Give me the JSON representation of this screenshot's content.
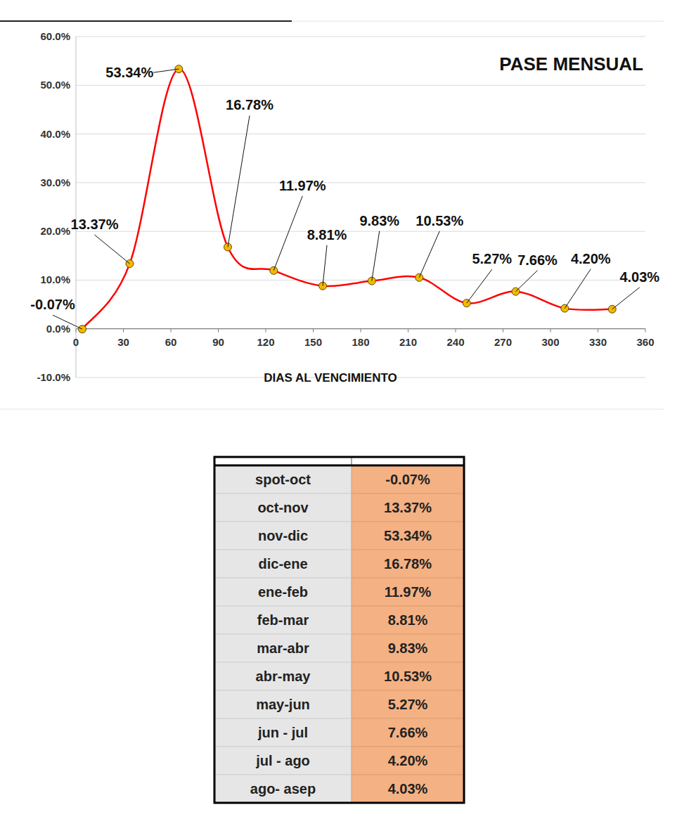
{
  "chart_data": {
    "type": "line",
    "title": "PASE MENSUAL",
    "x_label": "DIAS AL VENCIMIENTO",
    "x": [
      4,
      34,
      65,
      96,
      125,
      156,
      187,
      217,
      247,
      278,
      309,
      339
    ],
    "values": [
      -0.07,
      13.37,
      53.34,
      16.78,
      11.97,
      8.81,
      9.83,
      10.53,
      5.27,
      7.66,
      4.2,
      4.03
    ],
    "value_labels": [
      "-0.07%",
      "13.37%",
      "53.34%",
      "16.78%",
      "11.97%",
      "8.81%",
      "9.83%",
      "10.53%",
      "5.27%",
      "7.66%",
      "4.20%",
      "4.03%"
    ],
    "color": "#ff0000",
    "marker": "circle",
    "line_style": "smooth",
    "data_labels": true,
    "grid": true,
    "xlim": [
      0,
      360
    ],
    "xticks": [
      0,
      30,
      60,
      90,
      120,
      150,
      180,
      210,
      240,
      270,
      300,
      330,
      360
    ],
    "ylim": [
      -10,
      60
    ],
    "yticks": [
      {
        "value": -10,
        "label": "-10.0%"
      },
      {
        "value": 0,
        "label": "0.0%"
      },
      {
        "value": 10,
        "label": "10.0%"
      },
      {
        "value": 20,
        "label": "20.0%"
      },
      {
        "value": 30,
        "label": "30.0%"
      },
      {
        "value": 40,
        "label": "40.0%"
      },
      {
        "value": 50,
        "label": "50.0%"
      },
      {
        "value": 60,
        "label": "60.0%"
      }
    ]
  },
  "table": {
    "rows": [
      [
        "spot-oct",
        "-0.07%"
      ],
      [
        "oct-nov",
        "13.37%"
      ],
      [
        "nov-dic",
        "53.34%"
      ],
      [
        "dic-ene",
        "16.78%"
      ],
      [
        "ene-feb",
        "11.97%"
      ],
      [
        "feb-mar",
        "8.81%"
      ],
      [
        "mar-abr",
        "9.83%"
      ],
      [
        "abr-may",
        "10.53%"
      ],
      [
        "may-jun",
        "5.27%"
      ],
      [
        "jun - jul",
        "7.66%"
      ],
      [
        "jul - ago",
        "4.20%"
      ],
      [
        "ago- asep",
        "4.03%"
      ]
    ]
  }
}
